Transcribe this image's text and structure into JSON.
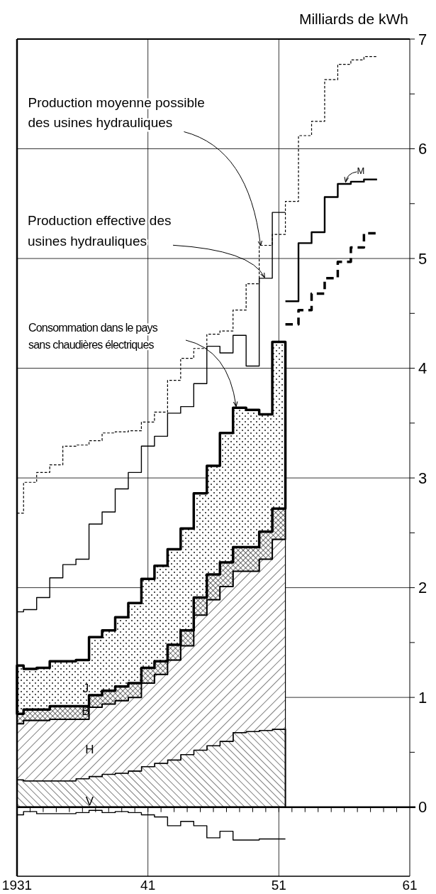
{
  "chart_data": {
    "type": "area",
    "stacked": true,
    "ylabel": "Milliards de kWh",
    "xlim": [
      1931,
      1961
    ],
    "ylim": [
      -0.63,
      7
    ],
    "xticks": [
      {
        "value": 1931,
        "label": "1931"
      },
      {
        "value": 1932,
        "label": null
      },
      {
        "value": 1933,
        "label": null
      },
      {
        "value": 1934,
        "label": null
      },
      {
        "value": 1935,
        "label": null
      },
      {
        "value": 1936,
        "label": null
      },
      {
        "value": 1937,
        "label": null
      },
      {
        "value": 1938,
        "label": null
      },
      {
        "value": 1939,
        "label": null
      },
      {
        "value": 1940,
        "label": null
      },
      {
        "value": 1941,
        "label": "41"
      },
      {
        "value": 1942,
        "label": null
      },
      {
        "value": 1943,
        "label": null
      },
      {
        "value": 1944,
        "label": null
      },
      {
        "value": 1945,
        "label": null
      },
      {
        "value": 1946,
        "label": null
      },
      {
        "value": 1947,
        "label": null
      },
      {
        "value": 1948,
        "label": null
      },
      {
        "value": 1949,
        "label": null
      },
      {
        "value": 1950,
        "label": null
      },
      {
        "value": 1951,
        "label": "51"
      },
      {
        "value": 1952,
        "label": null
      },
      {
        "value": 1953,
        "label": null
      },
      {
        "value": 1954,
        "label": null
      },
      {
        "value": 1955,
        "label": null
      },
      {
        "value": 1956,
        "label": null
      },
      {
        "value": 1957,
        "label": null
      },
      {
        "value": 1958,
        "label": null
      },
      {
        "value": 1959,
        "label": null
      },
      {
        "value": 1960,
        "label": null
      },
      {
        "value": 1961,
        "label": "61"
      }
    ],
    "yticks": [
      0,
      {
        "value": 0.5,
        "label": null
      },
      1,
      {
        "value": 1.5,
        "label": null
      },
      2,
      {
        "value": 2.5,
        "label": null
      },
      3,
      {
        "value": 3.5,
        "label": null
      },
      4,
      {
        "value": 4.5,
        "label": null
      },
      5,
      {
        "value": 5.5,
        "label": null
      },
      6,
      {
        "value": 6.5,
        "label": null
      },
      7
    ],
    "grid": true,
    "x": [
      1931,
      1931.5,
      1932.5,
      1933.5,
      1934.5,
      1935.5,
      1936.5,
      1937.5,
      1938.5,
      1939.5,
      1940.5,
      1941.5,
      1942.5,
      1943.5,
      1944.5,
      1945.5,
      1946.5,
      1947.5,
      1948.5,
      1949.5,
      1950.5,
      1951.5
    ],
    "series": [
      {
        "color": "#000000",
        "values": [
          0.25,
          0.24,
          0.24,
          0.24,
          0.24,
          0.26,
          0.28,
          0.3,
          0.31,
          0.33,
          0.37,
          0.4,
          0.43,
          0.48,
          0.52,
          0.56,
          0.6,
          0.68,
          0.69,
          0.7,
          0.71,
          0.71
        ]
      },
      {
        "color": "#000000",
        "values": [
          0.51,
          0.55,
          0.55,
          0.56,
          0.56,
          0.54,
          0.63,
          0.64,
          0.66,
          0.67,
          0.76,
          0.81,
          0.91,
          0.99,
          1.23,
          1.33,
          1.41,
          1.47,
          1.46,
          1.56,
          1.73,
          1.73
        ]
      },
      {
        "color": "#000000",
        "values": [
          0.09,
          0.1,
          0.1,
          0.12,
          0.12,
          0.12,
          0.11,
          0.12,
          0.13,
          0.13,
          0.14,
          0.12,
          0.14,
          0.14,
          0.16,
          0.23,
          0.22,
          0.22,
          0.22,
          0.25,
          0.28,
          0.28
        ]
      },
      {
        "color": "#000000",
        "values": [
          0.44,
          0.37,
          0.38,
          0.41,
          0.41,
          0.42,
          0.53,
          0.55,
          0.63,
          0.73,
          0.81,
          0.87,
          0.87,
          0.93,
          0.95,
          0.99,
          1.18,
          1.27,
          1.25,
          1.07,
          1.52,
          1.52
        ]
      },
      {
        "type": "step",
        "color": "#000000",
        "line_style": "dashed",
        "x": [
          1951.5,
          1952.5,
          1953.5,
          1954.5,
          1955.5,
          1956.5,
          1957.5,
          1958.5
        ],
        "values": [
          4.4,
          4.53,
          4.68,
          4.82,
          4.97,
          5.1,
          5.23,
          5.23
        ]
      },
      {
        "type": "step",
        "color": "#000000",
        "line_style": "dashed",
        "x": [
          1931,
          1931.5,
          1932.5,
          1933.5,
          1934.5,
          1935.5,
          1936.5,
          1937.5,
          1938.5,
          1939.5,
          1940.5,
          1941.5,
          1942.5,
          1943.5,
          1944.5,
          1945.5,
          1946.5,
          1947.5,
          1948.5,
          1949.5,
          1950.5,
          1951.5,
          1952.5,
          1953.5,
          1954.5,
          1955.5,
          1956.5,
          1957.5,
          1958.5
        ],
        "values": [
          2.68,
          2.96,
          3.05,
          3.12,
          3.29,
          3.3,
          3.34,
          3.41,
          3.42,
          3.43,
          3.51,
          3.6,
          3.89,
          4.09,
          4.18,
          4.31,
          4.34,
          4.53,
          4.77,
          5.12,
          5.22,
          5.52,
          6.12,
          6.25,
          6.63,
          6.77,
          6.81,
          6.84,
          6.84
        ]
      },
      {
        "type": "step",
        "color": "#000000",
        "line_style": "solid",
        "x": [
          1931,
          1931.5,
          1932.5,
          1933.5,
          1934.5,
          1935.5,
          1936.5,
          1937.5,
          1938.5,
          1939.5,
          1940.5,
          1941.5,
          1942.5,
          1943.5,
          1944.5,
          1945.5,
          1946.5,
          1947.5,
          1948.5,
          1949.5,
          1950.5,
          1951.5
        ],
        "values": [
          1.78,
          1.8,
          1.91,
          2.09,
          2.21,
          2.26,
          2.58,
          2.69,
          2.9,
          3.05,
          3.29,
          3.38,
          3.59,
          3.65,
          3.86,
          4.2,
          4.14,
          4.3,
          4.02,
          4.82,
          5.42,
          5.42
        ]
      },
      {
        "type": "step",
        "color": "#000000",
        "line_style": "solid",
        "x": [
          1951.5,
          1952.5,
          1953.5,
          1954.5,
          1955.5,
          1956.5,
          1957.5,
          1958.5
        ],
        "values": [
          4.61,
          5.14,
          5.24,
          5.56,
          5.68,
          5.7,
          5.72,
          5.72
        ]
      },
      {
        "type": "step",
        "color": "#000000",
        "line_style": "solid",
        "x": [
          1931,
          1931.5,
          1932.5,
          1933.5,
          1934.5,
          1935.5,
          1936.5,
          1937.5,
          1938.5,
          1939.5,
          1940.5,
          1941.5,
          1942.5,
          1943.5,
          1944.5,
          1945.5,
          1946.5,
          1947.5,
          1948.5,
          1949.5,
          1950.5,
          1951.5
        ],
        "values": [
          -0.07,
          -0.04,
          -0.06,
          -0.06,
          -0.06,
          -0.05,
          -0.03,
          -0.05,
          -0.04,
          -0.05,
          -0.07,
          -0.09,
          -0.17,
          -0.13,
          -0.17,
          -0.28,
          -0.22,
          -0.3,
          -0.3,
          -0.29,
          -0.29,
          -0.29
        ]
      }
    ],
    "annotations": [
      {
        "text": "Production moyenne possible\ndes usines hydrauliques",
        "x": 1949.6,
        "y": 5.12
      },
      {
        "text": "Production effective des\nusines hydrauliques",
        "x": 1949.9,
        "y": 4.83
      },
      "Consommation dans le pays\nsans chaudières électriques",
      {
        "text": "M",
        "x": 1956.1,
        "y": 5.7
      },
      "J",
      "B",
      "H",
      "V"
    ]
  }
}
